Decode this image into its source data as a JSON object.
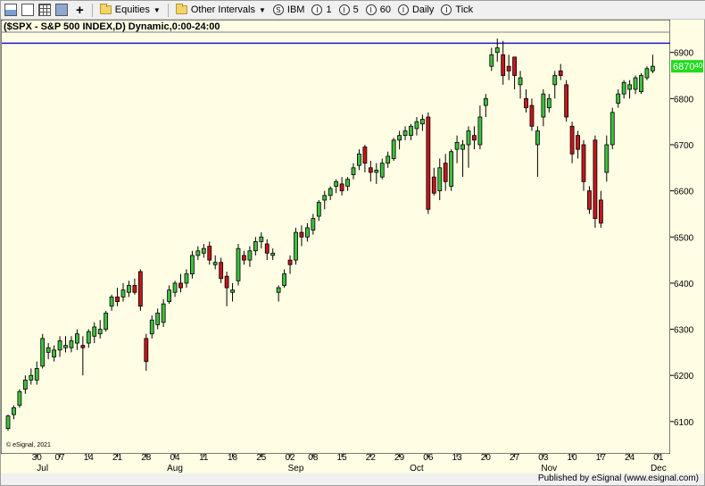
{
  "toolbar": {
    "icons": [
      "chart-window-icon",
      "page-icon",
      "grid-icon",
      "save-icon",
      "add-icon"
    ],
    "equities_label": "Equities",
    "other_intervals_label": "Other Intervals",
    "intervals": [
      {
        "glyph": "S",
        "label": "IBM"
      },
      {
        "glyph": "I",
        "label": "1"
      },
      {
        "glyph": "I",
        "label": "5"
      },
      {
        "glyph": "I",
        "label": "60"
      },
      {
        "glyph": "I",
        "label": "Daily"
      },
      {
        "glyph": "I",
        "label": "Tick"
      }
    ]
  },
  "footer": {
    "published_by": "Published by eSignal (www.esignal.com)"
  },
  "colors": {
    "background": "#fffde4",
    "up": "#3fbf3f",
    "down": "#c4161c",
    "outline": "#000000",
    "hline": "#1a1ad0",
    "price_tag": "#1fdc1f"
  },
  "chart_data": {
    "type": "candlestick",
    "title": "($SPX - S&P 500 INDEX,D) Dynamic,0:00-24:00",
    "watermark": "© eSignal, 2021",
    "current_price_label": "6870",
    "current_price_suffix": "40",
    "current_price": 6870,
    "horizontal_line": 6920,
    "ylim": [
      6030,
      6942
    ],
    "yticks": [
      6100,
      6200,
      6300,
      6400,
      6500,
      6600,
      6700,
      6800,
      6900
    ],
    "ytick_labels": [
      "6100",
      "6200",
      "6300",
      "6400",
      "6500",
      "6600",
      "6700",
      "6800",
      "6900"
    ],
    "day_labels": [
      {
        "label": "30",
        "index": 5
      },
      {
        "label": "07",
        "index": 9
      },
      {
        "label": "14",
        "index": 14
      },
      {
        "label": "21",
        "index": 19
      },
      {
        "label": "28",
        "index": 24
      },
      {
        "label": "04",
        "index": 29
      },
      {
        "label": "11",
        "index": 34
      },
      {
        "label": "18",
        "index": 39
      },
      {
        "label": "25",
        "index": 44
      },
      {
        "label": "02",
        "index": 49
      },
      {
        "label": "08",
        "index": 53
      },
      {
        "label": "15",
        "index": 58
      },
      {
        "label": "22",
        "index": 63
      },
      {
        "label": "29",
        "index": 68
      },
      {
        "label": "06",
        "index": 73
      },
      {
        "label": "13",
        "index": 78
      },
      {
        "label": "20",
        "index": 83
      },
      {
        "label": "27",
        "index": 88
      },
      {
        "label": "03",
        "index": 93
      },
      {
        "label": "10",
        "index": 98
      },
      {
        "label": "17",
        "index": 103
      },
      {
        "label": "24",
        "index": 108
      },
      {
        "label": "01",
        "index": 113
      }
    ],
    "month_labels": [
      {
        "label": "Jul",
        "index": 6
      },
      {
        "label": "Aug",
        "index": 29
      },
      {
        "label": "Sep",
        "index": 50
      },
      {
        "label": "Oct",
        "index": 71
      },
      {
        "label": "Nov",
        "index": 94
      },
      {
        "label": "Dec",
        "index": 113
      }
    ],
    "candles": [
      [
        6085,
        6115,
        6080,
        6112
      ],
      [
        6115,
        6135,
        6105,
        6130
      ],
      [
        6135,
        6170,
        6130,
        6165
      ],
      [
        6170,
        6200,
        6160,
        6190
      ],
      [
        6190,
        6215,
        6180,
        6200
      ],
      [
        6190,
        6230,
        6180,
        6215
      ],
      [
        6220,
        6290,
        6215,
        6280
      ],
      [
        6250,
        6270,
        6235,
        6260
      ],
      [
        6240,
        6265,
        6230,
        6255
      ],
      [
        6255,
        6285,
        6240,
        6275
      ],
      [
        6260,
        6285,
        6250,
        6265
      ],
      [
        6260,
        6285,
        6250,
        6275
      ],
      [
        6270,
        6300,
        6255,
        6290
      ],
      [
        6265,
        6285,
        6200,
        6260
      ],
      [
        6270,
        6300,
        6260,
        6295
      ],
      [
        6285,
        6315,
        6270,
        6305
      ],
      [
        6290,
        6320,
        6280,
        6300
      ],
      [
        6300,
        6340,
        6295,
        6335
      ],
      [
        6350,
        6375,
        6340,
        6370
      ],
      [
        6370,
        6390,
        6350,
        6360
      ],
      [
        6370,
        6400,
        6360,
        6385
      ],
      [
        6380,
        6405,
        6370,
        6395
      ],
      [
        6395,
        6410,
        6375,
        6380
      ],
      [
        6425,
        6430,
        6340,
        6350
      ],
      [
        6280,
        6290,
        6210,
        6230
      ],
      [
        6290,
        6330,
        6280,
        6320
      ],
      [
        6310,
        6345,
        6300,
        6335
      ],
      [
        6315,
        6365,
        6305,
        6355
      ],
      [
        6360,
        6395,
        6355,
        6385
      ],
      [
        6380,
        6405,
        6370,
        6400
      ],
      [
        6400,
        6420,
        6380,
        6390
      ],
      [
        6400,
        6430,
        6390,
        6420
      ],
      [
        6420,
        6470,
        6410,
        6460
      ],
      [
        6460,
        6480,
        6450,
        6470
      ],
      [
        6465,
        6485,
        6455,
        6475
      ],
      [
        6480,
        6490,
        6440,
        6450
      ],
      [
        6440,
        6460,
        6430,
        6445
      ],
      [
        6445,
        6455,
        6400,
        6410
      ],
      [
        6415,
        6425,
        6350,
        6390
      ],
      [
        6380,
        6400,
        6360,
        6385
      ],
      [
        6405,
        6485,
        6395,
        6475
      ],
      [
        6460,
        6470,
        6440,
        6450
      ],
      [
        6450,
        6480,
        6435,
        6470
      ],
      [
        6470,
        6500,
        6460,
        6490
      ],
      [
        6490,
        6510,
        6475,
        6500
      ],
      [
        6485,
        6495,
        6450,
        6465
      ],
      [
        6460,
        6475,
        6450,
        6465
      ],
      [
        6380,
        6395,
        6360,
        6390
      ],
      [
        6395,
        6430,
        6390,
        6420
      ],
      [
        6450,
        6460,
        6420,
        6440
      ],
      [
        6450,
        6520,
        6440,
        6510
      ],
      [
        6510,
        6525,
        6480,
        6500
      ],
      [
        6500,
        6530,
        6490,
        6520
      ],
      [
        6515,
        6550,
        6505,
        6540
      ],
      [
        6545,
        6580,
        6535,
        6575
      ],
      [
        6580,
        6600,
        6560,
        6590
      ],
      [
        6590,
        6610,
        6580,
        6605
      ],
      [
        6610,
        6625,
        6595,
        6620
      ],
      [
        6615,
        6630,
        6590,
        6600
      ],
      [
        6610,
        6630,
        6600,
        6625
      ],
      [
        6635,
        6660,
        6625,
        6650
      ],
      [
        6655,
        6690,
        6645,
        6680
      ],
      [
        6695,
        6700,
        6640,
        6660
      ],
      [
        6650,
        6665,
        6620,
        6640
      ],
      [
        6640,
        6660,
        6615,
        6645
      ],
      [
        6630,
        6670,
        6625,
        6660
      ],
      [
        6660,
        6685,
        6650,
        6675
      ],
      [
        6670,
        6715,
        6665,
        6710
      ],
      [
        6710,
        6730,
        6690,
        6720
      ],
      [
        6720,
        6740,
        6710,
        6730
      ],
      [
        6720,
        6745,
        6710,
        6740
      ],
      [
        6735,
        6760,
        6720,
        6750
      ],
      [
        6745,
        6765,
        6730,
        6755
      ],
      [
        6760,
        6770,
        6550,
        6560
      ],
      [
        6630,
        6650,
        6590,
        6595
      ],
      [
        6600,
        6670,
        6580,
        6650
      ],
      [
        6660,
        6680,
        6600,
        6620
      ],
      [
        6610,
        6690,
        6600,
        6685
      ],
      [
        6690,
        6720,
        6660,
        6705
      ],
      [
        6690,
        6710,
        6630,
        6700
      ],
      [
        6700,
        6740,
        6650,
        6730
      ],
      [
        6720,
        6740,
        6690,
        6710
      ],
      [
        6700,
        6785,
        6690,
        6760
      ],
      [
        6785,
        6810,
        6760,
        6800
      ],
      [
        6870,
        6910,
        6860,
        6895
      ],
      [
        6900,
        6930,
        6880,
        6910
      ],
      [
        6895,
        6925,
        6830,
        6850
      ],
      [
        6870,
        6895,
        6840,
        6860
      ],
      [
        6890,
        6890,
        6820,
        6850
      ],
      [
        6830,
        6860,
        6800,
        6845
      ],
      [
        6800,
        6820,
        6770,
        6780
      ],
      [
        6785,
        6800,
        6730,
        6740
      ],
      [
        6700,
        6740,
        6630,
        6730
      ],
      [
        6760,
        6820,
        6740,
        6810
      ],
      [
        6780,
        6810,
        6770,
        6800
      ],
      [
        6830,
        6860,
        6800,
        6850
      ],
      [
        6860,
        6875,
        6840,
        6850
      ],
      [
        6830,
        6840,
        6750,
        6760
      ],
      [
        6740,
        6750,
        6660,
        6680
      ],
      [
        6720,
        6730,
        6670,
        6690
      ],
      [
        6700,
        6710,
        6600,
        6620
      ],
      [
        6600,
        6610,
        6550,
        6560
      ],
      [
        6710,
        6720,
        6520,
        6540
      ],
      [
        6580,
        6600,
        6520,
        6530
      ],
      [
        6640,
        6720,
        6620,
        6700
      ],
      [
        6700,
        6780,
        6690,
        6770
      ],
      [
        6790,
        6820,
        6780,
        6810
      ],
      [
        6810,
        6840,
        6800,
        6835
      ],
      [
        6820,
        6840,
        6800,
        6830
      ],
      [
        6820,
        6850,
        6810,
        6845
      ],
      [
        6815,
        6855,
        6810,
        6850
      ],
      [
        6845,
        6870,
        6840,
        6865
      ],
      [
        6860,
        6895,
        6855,
        6870
      ]
    ]
  }
}
